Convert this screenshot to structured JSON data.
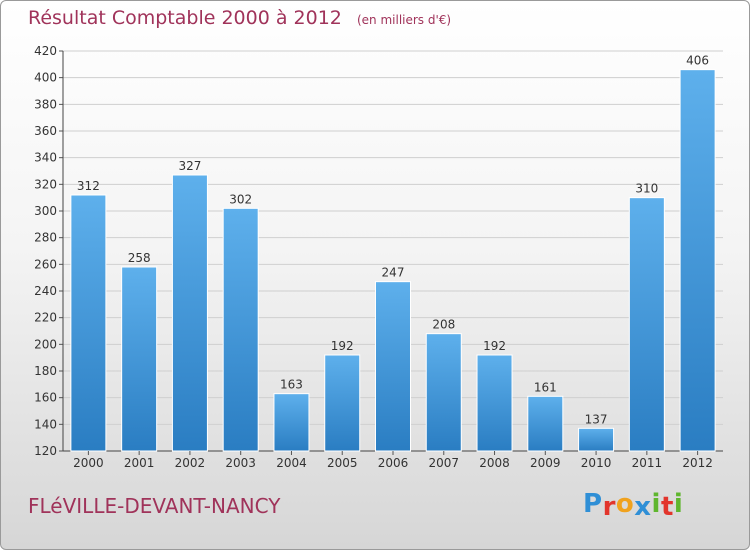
{
  "title": "Résultat Comptable 2000 à 2012",
  "subtitle": "(en milliers d'€)",
  "location": "FLéVILLE-DEVANT-NANCY",
  "logo": {
    "text": "Proxiti",
    "letters": [
      "P",
      "r",
      "o",
      "x",
      "i",
      "t",
      "i"
    ],
    "colors": [
      "#2f8fd6",
      "#e2352c",
      "#f0a21e",
      "#2f8fd6",
      "#5fb62e",
      "#e2352c",
      "#5fb62e"
    ]
  },
  "colors": {
    "title": "#a0335a",
    "bar_light": "#5eb0ec",
    "bar_dark": "#2a7dc2",
    "grid": "#cfcfcf"
  },
  "chart_data": {
    "type": "bar",
    "categories": [
      "2000",
      "2001",
      "2002",
      "2003",
      "2004",
      "2005",
      "2006",
      "2007",
      "2008",
      "2009",
      "2010",
      "2011",
      "2012"
    ],
    "values": [
      312,
      258,
      327,
      302,
      163,
      192,
      247,
      208,
      192,
      161,
      137,
      310,
      406
    ],
    "ylim": [
      120,
      420
    ],
    "yticks": [
      120,
      140,
      160,
      180,
      200,
      220,
      240,
      260,
      280,
      300,
      320,
      340,
      360,
      380,
      400,
      420
    ],
    "grid": true,
    "data_labels": true
  }
}
